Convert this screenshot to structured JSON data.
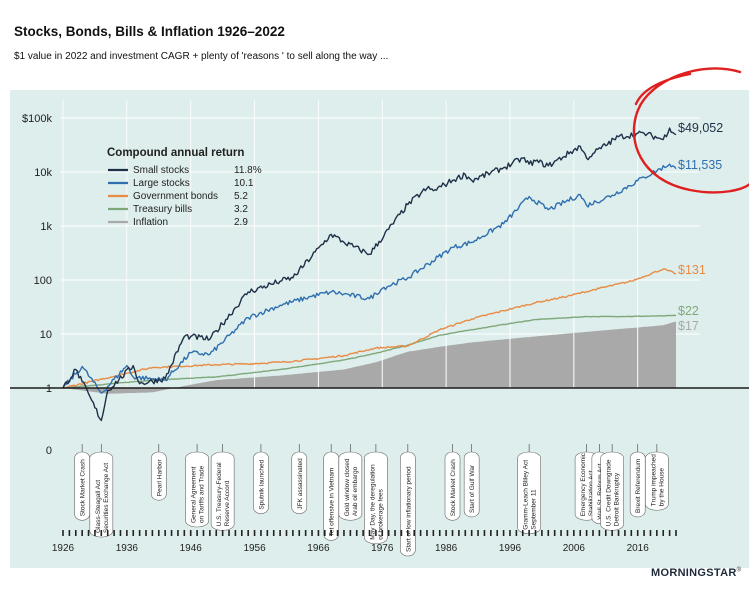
{
  "header": {
    "title": "Stocks, Bonds, Bills & Inflation 1926–2022",
    "subtitle": "$1 value in 2022 and investment CAGR + plenty of 'reasons ' to sell along the  way ..."
  },
  "brand": {
    "name": "MORNINGSTAR",
    "mark": "®"
  },
  "colors": {
    "background": "#deeeec",
    "small_stocks": "#1e3048",
    "large_stocks": "#2f6faf",
    "government_bonds": "#e88b45",
    "treasury_bills": "#7fa87a",
    "inflation": "#a9a9a9",
    "annotation_circle": "#e02020"
  },
  "chart_data": {
    "type": "line",
    "title": "Stocks, Bonds, Bills & Inflation 1926–2022",
    "subtitle": "$1 value in 2022 and investment CAGR + plenty of 'reasons ' to sell along the  way ...",
    "y_scale": "log",
    "ylim": [
      0.3,
      100000
    ],
    "xlim": [
      1926,
      2022
    ],
    "y_ticks": [
      {
        "value": 100000,
        "label": "$100k"
      },
      {
        "value": 10000,
        "label": "10k"
      },
      {
        "value": 1000,
        "label": "1k"
      },
      {
        "value": 100,
        "label": "100"
      },
      {
        "value": 10,
        "label": "10"
      },
      {
        "value": 1,
        "label": "1"
      },
      {
        "value": 0.4,
        "label": "0"
      }
    ],
    "x_ticks": [
      1926,
      1936,
      1946,
      1956,
      1966,
      1976,
      1986,
      1996,
      2006,
      2016
    ],
    "legend": {
      "title": "Compound annual return",
      "placement": "top-left",
      "entries": [
        {
          "name": "Small stocks",
          "value": "11.8%"
        },
        {
          "name": "Large stocks",
          "value": "10.1"
        },
        {
          "name": "Government bonds",
          "value": "5.2"
        },
        {
          "name": "Treasury bills",
          "value": "3.2"
        },
        {
          "name": "Inflation",
          "value": "2.9"
        }
      ]
    },
    "series": [
      {
        "name": "Small stocks",
        "color": "#1e3048",
        "end_label": "$49,052",
        "x": [
          1926,
          1928,
          1929,
          1932,
          1933,
          1937,
          1938,
          1942,
          1945,
          1946,
          1949,
          1955,
          1960,
          1962,
          1968,
          1970,
          1974,
          1980,
          1983,
          1984,
          1987,
          1989,
          1990,
          1995,
          1998,
          1999,
          2000,
          2002,
          2007,
          2008,
          2009,
          2013,
          2017,
          2020,
          2021,
          2022
        ],
        "y": [
          1,
          2.2,
          1.3,
          0.25,
          0.9,
          2.6,
          1.2,
          1.5,
          9,
          9,
          8,
          60,
          95,
          110,
          700,
          500,
          300,
          2500,
          5000,
          4500,
          7000,
          9000,
          7000,
          12000,
          18000,
          14000,
          16000,
          13000,
          30000,
          18000,
          22000,
          45000,
          52000,
          40000,
          65000,
          49052
        ]
      },
      {
        "name": "Large stocks",
        "color": "#2f6faf",
        "end_label": "$11,535",
        "x": [
          1926,
          1929,
          1932,
          1936,
          1937,
          1942,
          1946,
          1949,
          1955,
          1960,
          1965,
          1968,
          1970,
          1974,
          1976,
          1980,
          1987,
          1990,
          1995,
          1999,
          2002,
          2007,
          2008,
          2012,
          2017,
          2021,
          2022
        ],
        "y": [
          1,
          2.5,
          0.8,
          2.6,
          1.6,
          1.4,
          4.5,
          4.2,
          20,
          34,
          50,
          60,
          55,
          45,
          70,
          110,
          400,
          500,
          1100,
          3500,
          2000,
          3800,
          2400,
          3700,
          8000,
          14000,
          11535
        ]
      },
      {
        "name": "Government bonds",
        "color": "#e88b45",
        "end_label": "$131",
        "x": [
          1926,
          1940,
          1950,
          1955,
          1960,
          1965,
          1970,
          1975,
          1980,
          1985,
          1990,
          1995,
          2000,
          2005,
          2010,
          2015,
          2020,
          2022
        ],
        "y": [
          1,
          2.4,
          2.7,
          2.8,
          3,
          3.4,
          4,
          5.5,
          6,
          12,
          19,
          27,
          38,
          50,
          70,
          95,
          160,
          131
        ]
      },
      {
        "name": "Treasury bills",
        "color": "#7fa87a",
        "end_label": "$22",
        "x": [
          1926,
          1940,
          1950,
          1960,
          1970,
          1975,
          1980,
          1985,
          1990,
          1995,
          2000,
          2005,
          2008,
          2015,
          2020,
          2022
        ],
        "y": [
          1,
          1.4,
          1.6,
          2.2,
          3.3,
          4.4,
          6.2,
          9.5,
          12,
          15,
          18.5,
          20,
          21,
          21.2,
          21.6,
          22
        ]
      },
      {
        "name": "Inflation",
        "color": "#a9a9a9",
        "end_label": "$17",
        "x": [
          1926,
          1933,
          1940,
          1946,
          1950,
          1960,
          1970,
          1975,
          1980,
          1985,
          1990,
          2000,
          2010,
          2020,
          2022
        ],
        "y": [
          1,
          0.78,
          0.83,
          1.15,
          1.4,
          1.7,
          2.2,
          3,
          4.7,
          5.8,
          7,
          9,
          11.5,
          14.5,
          17
        ]
      }
    ],
    "events": [
      {
        "x": 1929,
        "label": "Stock Market Crash"
      },
      {
        "x": 1932,
        "label": "Glass-Steagall Act\nSecurities Exchange Act"
      },
      {
        "x": 1941,
        "label": "Pearl Harbor"
      },
      {
        "x": 1947,
        "label": "General Agreement\non Tariffs and Trade"
      },
      {
        "x": 1951,
        "label": "U.S. Treasury-Federal\nReserve Accord"
      },
      {
        "x": 1957,
        "label": "Sputnik launched"
      },
      {
        "x": 1963,
        "label": "JFK assassinated"
      },
      {
        "x": 1968,
        "label": "Tet offensive in Vietnam"
      },
      {
        "x": 1971,
        "label": "Gold window closed\nArab oil embargo"
      },
      {
        "x": 1975,
        "label": "May Day, the deregulation\nof brokerage fees"
      },
      {
        "x": 1980,
        "label": "Start of low inflationary period"
      },
      {
        "x": 1987,
        "label": "Stock Market Crash"
      },
      {
        "x": 1990,
        "label": "Start of Gulf War"
      },
      {
        "x": 1999,
        "label": "Gramm-Leach Bliley Act\nSeptember 11"
      },
      {
        "x": 2008,
        "label": "Emergency Economic\nStabilization Act"
      },
      {
        "x": 2010,
        "label": "Wall St. Reform Act"
      },
      {
        "x": 2012,
        "label": "U.S. Credit Downgrade\nDetroit Bankruptcy"
      },
      {
        "x": 2016,
        "label": "Brexit Referendum"
      },
      {
        "x": 2019,
        "label": "Trump impeached\nby the House"
      }
    ]
  }
}
